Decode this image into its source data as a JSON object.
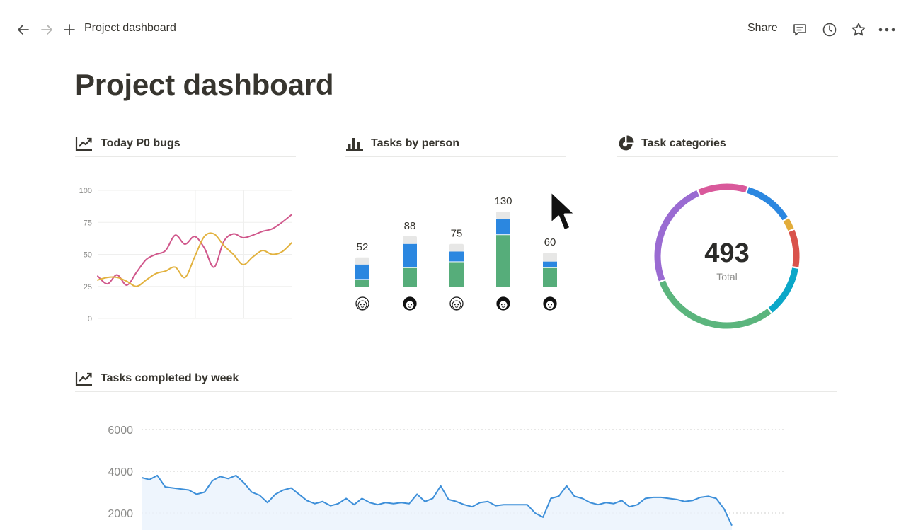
{
  "topbar": {
    "back_icon": "arrow-left-icon",
    "forward_icon": "arrow-right-icon",
    "add_icon": "plus-icon",
    "breadcrumb": "Project dashboard",
    "share_label": "Share",
    "comments_icon": "comment-icon",
    "history_icon": "clock-icon",
    "favorite_icon": "star-icon",
    "more_icon": "more-horizontal-icon"
  },
  "page": {
    "title": "Project dashboard"
  },
  "widgets": {
    "bugs": {
      "title": "Today P0 bugs",
      "icon": "line-chart-icon"
    },
    "tasks_by_person": {
      "title": "Tasks by person",
      "icon": "bar-chart-icon"
    },
    "categories": {
      "title": "Task categories",
      "icon": "pie-chart-icon"
    },
    "weekly": {
      "title": "Tasks completed by week",
      "icon": "line-chart-icon"
    }
  },
  "chart_data": [
    {
      "id": "p0-bugs",
      "type": "line",
      "title": "Today P0 bugs",
      "ylim": [
        0,
        100
      ],
      "yticks": [
        0,
        25,
        50,
        75,
        100
      ],
      "grid": true,
      "x": [
        0,
        1,
        2,
        3,
        4,
        5,
        6,
        7,
        8,
        9,
        10,
        11,
        12,
        13,
        14,
        15,
        16,
        17,
        18,
        19,
        20
      ],
      "series": [
        {
          "color": "#d0578b",
          "values": [
            33,
            27,
            34,
            26,
            36,
            46,
            50,
            53,
            65,
            58,
            64,
            55,
            40,
            60,
            66,
            63,
            65,
            68,
            70,
            75,
            81
          ]
        },
        {
          "color": "#e2b23f",
          "values": [
            30,
            32,
            32,
            29,
            25,
            30,
            35,
            37,
            40,
            32,
            48,
            64,
            66,
            57,
            50,
            42,
            48,
            53,
            50,
            52,
            59
          ]
        }
      ]
    },
    {
      "id": "tasks-by-person",
      "type": "bar",
      "title": "Tasks by person",
      "categories": [
        "Person 1",
        "Person 2",
        "Person 3",
        "Person 4",
        "Person 5"
      ],
      "totals": [
        52,
        88,
        75,
        130,
        60
      ],
      "series": [
        {
          "color": "#56ad7a",
          "values": [
            14,
            34,
            44,
            90,
            34
          ]
        },
        {
          "color": "#2b87e0",
          "values": [
            26,
            41,
            18,
            28,
            11
          ]
        },
        {
          "color": "#e7e7e6",
          "values": [
            12,
            13,
            13,
            12,
            15
          ]
        }
      ]
    },
    {
      "id": "task-categories",
      "type": "pie",
      "title": "Task categories",
      "total": 493,
      "total_label": "Total",
      "slices": [
        {
          "color": "#d9599b",
          "value": 56
        },
        {
          "color": "#2b87e0",
          "value": 56
        },
        {
          "color": "#e2ac3a",
          "value": 14
        },
        {
          "color": "#d9534c",
          "value": 43
        },
        {
          "color": "#0ba7c8",
          "value": 58
        },
        {
          "color": "#5bb57d",
          "value": 147
        },
        {
          "color": "#9a6bd2",
          "value": 119
        }
      ]
    },
    {
      "id": "weekly-completed",
      "type": "area",
      "title": "Tasks completed by week",
      "yticks": [
        2000,
        4000,
        6000
      ],
      "ytick_labels": [
        "2000",
        "4000",
        "6000"
      ],
      "ylim": [
        1200,
        6000
      ],
      "grid": true,
      "color": "#3d8fd9",
      "values": [
        3700,
        3600,
        3800,
        3250,
        3200,
        3150,
        3100,
        2900,
        3000,
        3550,
        3750,
        3650,
        3800,
        3450,
        3000,
        2850,
        2500,
        2900,
        3100,
        3200,
        2900,
        2600,
        2450,
        2550,
        2350,
        2450,
        2700,
        2400,
        2700,
        2500,
        2400,
        2500,
        2450,
        2500,
        2450,
        2900,
        2550,
        2700,
        3300,
        2650,
        2550,
        2400,
        2300,
        2500,
        2550,
        2350,
        2400,
        2400,
        2400,
        2400,
        2000,
        1800,
        2700,
        2800,
        3300,
        2800,
        2700,
        2500,
        2400,
        2500,
        2450,
        2600,
        2300,
        2400,
        2700,
        2750,
        2750,
        2700,
        2650,
        2550,
        2600,
        2750,
        2800,
        2700,
        2200,
        1400
      ]
    }
  ]
}
